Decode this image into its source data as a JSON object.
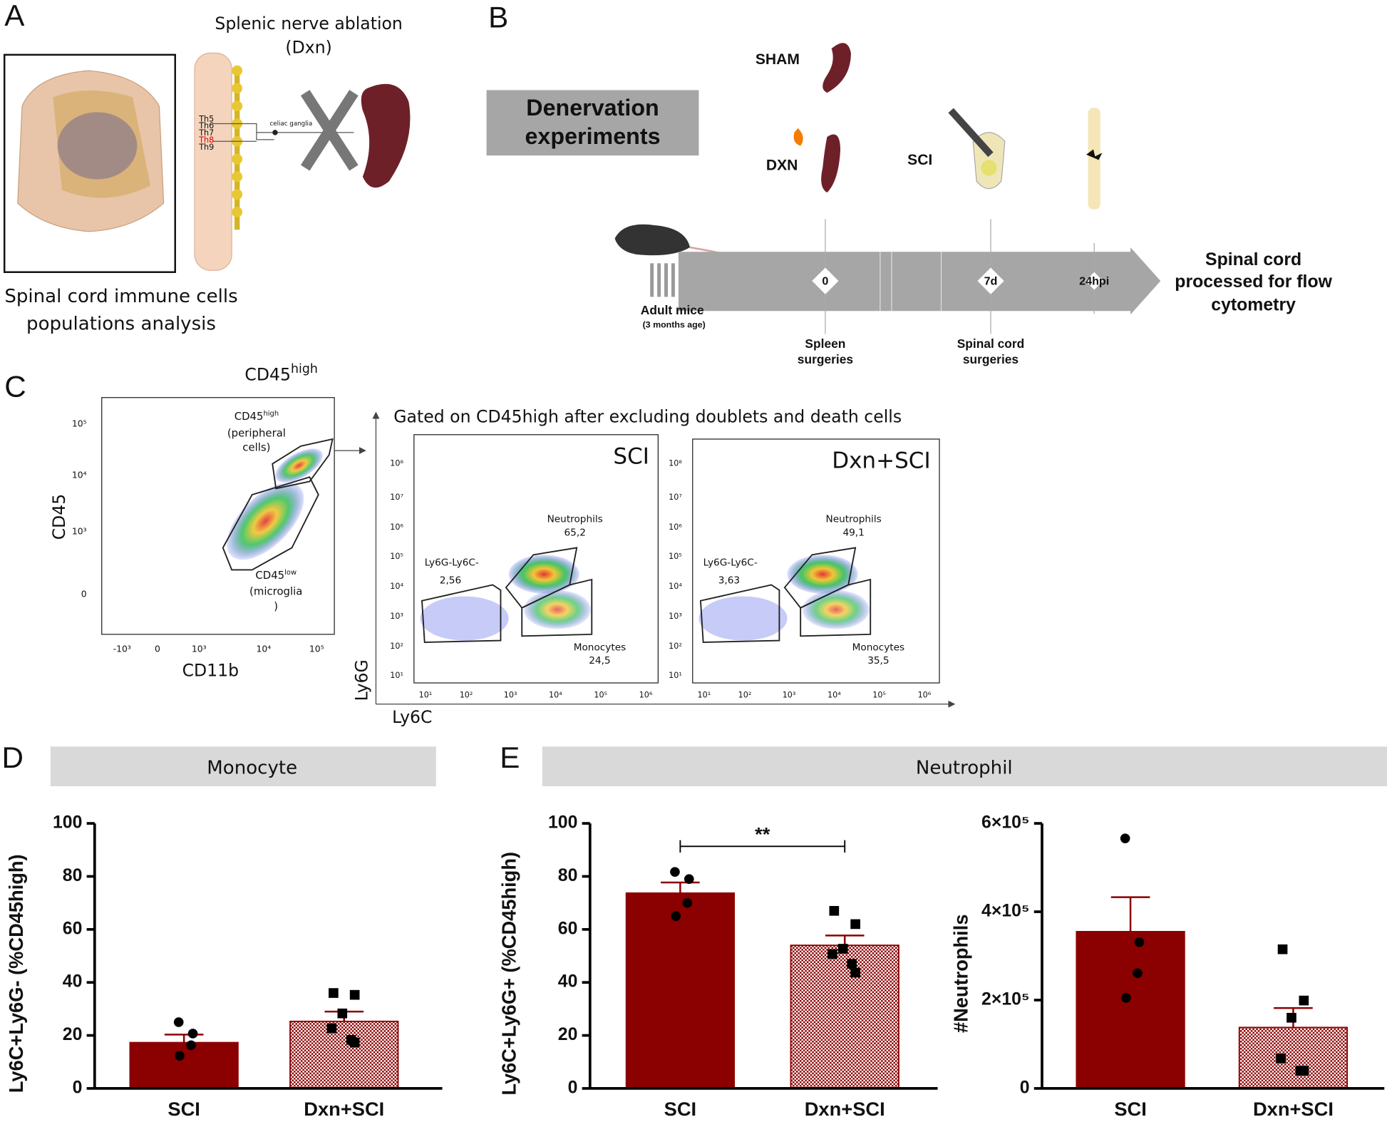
{
  "panel_labels": [
    "A",
    "B",
    "C",
    "D",
    "E"
  ],
  "panel_a": {
    "title": [
      "Splenic nerve ablation",
      "(Dxn)"
    ],
    "caption": [
      "Spinal cord immune cells",
      "populations analysis"
    ],
    "levels": [
      "Th5",
      "Th6",
      "Th7",
      "Th8",
      "Th9"
    ],
    "ganglia": "celiac ganglia"
  },
  "panel_b": {
    "box": [
      "Denervation",
      "experiments"
    ],
    "sham": "SHAM",
    "dxn": "DXN",
    "sci": "SCI",
    "timepoints": [
      "0",
      "7d",
      "24hpi"
    ],
    "mice": [
      "Adult mice",
      "(3 months age)"
    ],
    "spleen_surgeries": [
      "Spleen",
      "surgeries"
    ],
    "cord_surgeries": [
      "Spinal cord",
      "surgeries"
    ],
    "outcome": [
      "Spinal cord",
      "processed for flow",
      "cytometry"
    ]
  },
  "panel_c": {
    "gate_title": [
      "CD45",
      "high"
    ],
    "y_label": "CD45",
    "x_label": "CD11b",
    "y_ticks": [
      "10⁵",
      "10⁴",
      "10³",
      "0"
    ],
    "x_ticks": [
      "-10³",
      "0",
      "10³",
      "10⁴",
      "10⁵"
    ],
    "peripheral": [
      "CD45",
      "high",
      "(peripheral",
      "cells)"
    ],
    "microglia": [
      "CD45",
      "low",
      "(microglia",
      ")"
    ],
    "note": "Gated on CD45high after excluding doublets and death cells",
    "flow_y_label": "Ly6G",
    "flow_x_label": "Ly6C",
    "flow_y_ticks": [
      "10⁸",
      "10⁷",
      "10⁶",
      "10⁵",
      "10⁴",
      "10³",
      "10²",
      "10¹"
    ],
    "flow_x_ticks": [
      "10¹",
      "10²",
      "10³",
      "10⁴",
      "10⁵",
      "10⁶"
    ],
    "plots": [
      {
        "title": "SCI",
        "gates": [
          [
            "Ly6G-Ly6C-",
            "2,56"
          ],
          [
            "Neutrophils",
            "65,2"
          ],
          [
            "Monocytes",
            "24,5"
          ]
        ]
      },
      {
        "title": "Dxn+SCI",
        "gates": [
          [
            "Ly6G-Ly6C-",
            "3,63"
          ],
          [
            "Neutrophils",
            "49,1"
          ],
          [
            "Monocytes",
            "35,5"
          ]
        ]
      }
    ]
  },
  "headers": {
    "d": "Monocyte",
    "e": "Neutrophil"
  },
  "chart_data": [
    {
      "type": "bar",
      "y_label": "Ly6C+Ly6G- (%CD45high)",
      "categories": [
        "SCI",
        "Dxn+SCI"
      ],
      "values": [
        17.3,
        25.3
      ],
      "errors": [
        3,
        3.7
      ],
      "points": [
        [
          25,
          20.7,
          16.3,
          12.3
        ],
        [
          36,
          35.3,
          28.3,
          22.7,
          18.3,
          17.3
        ]
      ],
      "color": "#8b0000",
      "patterns": [
        "solid",
        "checker"
      ],
      "markers": [
        "circle",
        "square"
      ],
      "ylim": [
        0,
        100
      ],
      "yticks": [
        0,
        20,
        40,
        60,
        80,
        100
      ]
    },
    {
      "type": "bar",
      "y_label": "Ly6C+Ly6G+ (%CD45high)",
      "categories": [
        "SCI",
        "Dxn+SCI"
      ],
      "values": [
        73.7,
        54
      ],
      "errors": [
        4,
        3.7
      ],
      "points": [
        [
          81.7,
          79,
          70,
          65
        ],
        [
          67,
          62,
          52.7,
          50.7,
          47,
          43.7
        ]
      ],
      "color": "#8b0000",
      "patterns": [
        "solid",
        "checker"
      ],
      "markers": [
        "circle",
        "square"
      ],
      "ylim": [
        0,
        100
      ],
      "yticks": [
        0,
        20,
        40,
        60,
        80,
        100
      ],
      "significance": "**"
    },
    {
      "type": "bar",
      "y_label": "#Neutrophils",
      "categories": [
        "SCI",
        "Dxn+SCI"
      ],
      "values": [
        355000,
        138000
      ],
      "errors": [
        78000,
        44000
      ],
      "points": [
        [
          566000,
          331000,
          261000,
          205000
        ],
        [
          315000,
          199000,
          160000,
          68000,
          40000,
          40000
        ]
      ],
      "color": "#8b0000",
      "patterns": [
        "solid",
        "checker"
      ],
      "markers": [
        "circle",
        "square"
      ],
      "ylim": [
        0,
        600000
      ],
      "yticks": [
        0,
        {
          "value": 200000,
          "label": "2×10⁵"
        },
        {
          "value": 400000,
          "label": "4×10⁵"
        },
        {
          "value": 600000,
          "label": "6×10⁵"
        }
      ]
    }
  ]
}
